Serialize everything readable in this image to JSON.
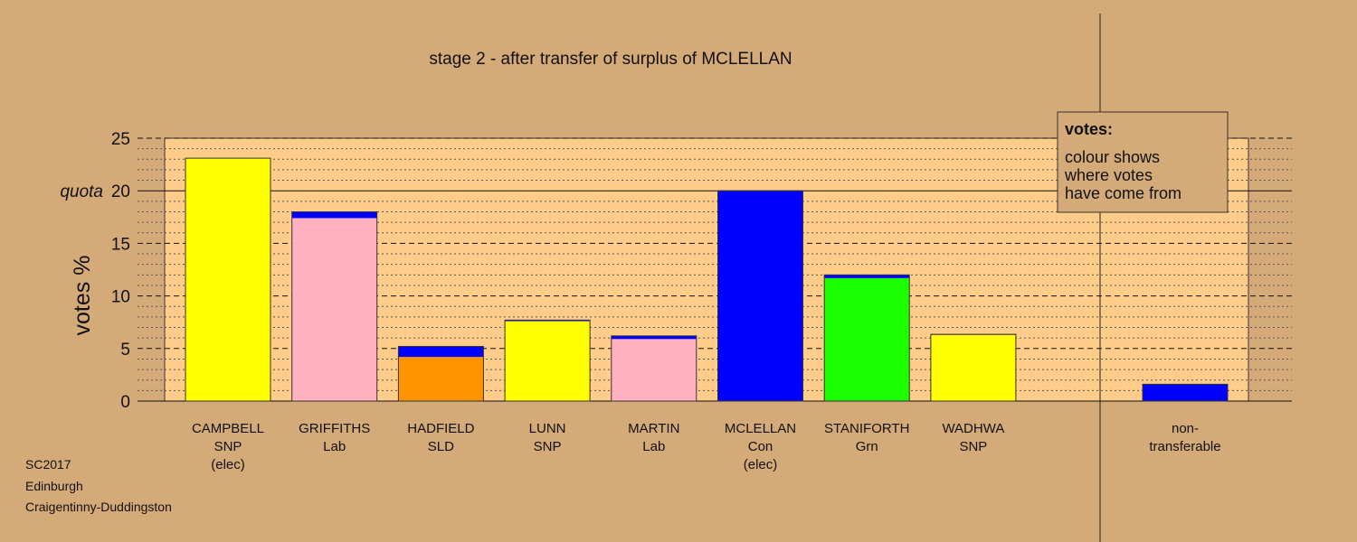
{
  "colors": {
    "background": "#d4aa78",
    "plot_area": "#ffcc8a",
    "SNP": "#ffff00",
    "Lab": "#ffb1c1",
    "SLD": "#ff9400",
    "Con": "#0000ff",
    "Grn": "#1cff00"
  },
  "footer": {
    "line1": "SC2017",
    "line2": "Edinburgh",
    "line3": "Craigentinny-Duddingston"
  },
  "legend": {
    "title": "votes:",
    "line1": "colour shows",
    "line2": "where votes",
    "line3": "have come from"
  },
  "chart_data": {
    "type": "bar",
    "title": "stage 2 - after transfer of surplus of MCLELLAN",
    "ylabel": "votes %",
    "ylim": [
      0,
      25
    ],
    "yticks": [
      {
        "value": 0,
        "label": "0"
      },
      {
        "value": 5,
        "label": "5"
      },
      {
        "value": 10,
        "label": "10"
      },
      {
        "value": 15,
        "label": "15"
      },
      {
        "value": 20,
        "label": "20"
      },
      {
        "value": 25,
        "label": "25"
      }
    ],
    "quota": {
      "value": 20,
      "label": "quota"
    },
    "candidates": [
      {
        "name": "CAMPBELL",
        "party": "SNP",
        "status": "(elec)",
        "segments": [
          {
            "source": "SNP",
            "value": 23.1
          }
        ]
      },
      {
        "name": "GRIFFITHS",
        "party": "Lab",
        "status": "",
        "segments": [
          {
            "source": "Lab",
            "value": 17.4
          },
          {
            "source": "Con",
            "value": 0.6
          }
        ]
      },
      {
        "name": "HADFIELD",
        "party": "SLD",
        "status": "",
        "segments": [
          {
            "source": "SLD",
            "value": 4.2
          },
          {
            "source": "Con",
            "value": 1.0
          }
        ]
      },
      {
        "name": "LUNN",
        "party": "SNP",
        "status": "",
        "segments": [
          {
            "source": "SNP",
            "value": 7.6
          },
          {
            "source": "Con",
            "value": 0.1
          }
        ]
      },
      {
        "name": "MARTIN",
        "party": "Lab",
        "status": "",
        "segments": [
          {
            "source": "Lab",
            "value": 5.9
          },
          {
            "source": "Con",
            "value": 0.3
          }
        ]
      },
      {
        "name": "MCLELLAN",
        "party": "Con",
        "status": "(elec)",
        "segments": [
          {
            "source": "Con",
            "value": 20.0
          }
        ]
      },
      {
        "name": "STANIFORTH",
        "party": "Grn",
        "status": "",
        "segments": [
          {
            "source": "Grn",
            "value": 11.7
          },
          {
            "source": "Con",
            "value": 0.3
          }
        ]
      },
      {
        "name": "WADHWA",
        "party": "SNP",
        "status": "",
        "segments": [
          {
            "source": "SNP",
            "value": 6.3
          },
          {
            "source": "Con",
            "value": 0.05
          }
        ]
      }
    ],
    "nontransferable": {
      "line1": "non-",
      "line2": "transferable",
      "segments": [
        {
          "source": "Con",
          "value": 1.6
        }
      ]
    }
  }
}
